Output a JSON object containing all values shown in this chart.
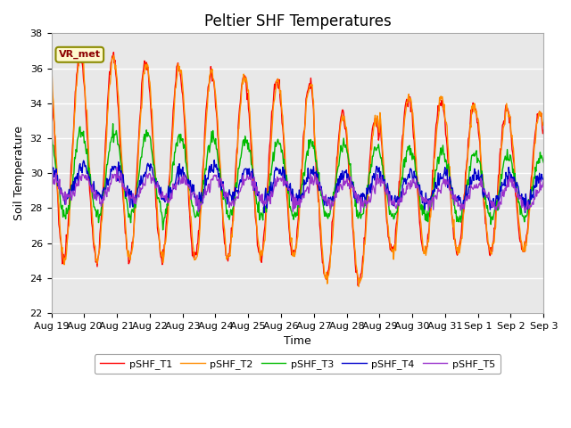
{
  "title": "Peltier SHF Temperatures",
  "xlabel": "Time",
  "ylabel": "Soil Temperature",
  "ylim": [
    22,
    38
  ],
  "xtick_labels": [
    "Aug 19",
    "Aug 20",
    "Aug 21",
    "Aug 22",
    "Aug 23",
    "Aug 24",
    "Aug 25",
    "Aug 26",
    "Aug 27",
    "Aug 28",
    "Aug 29",
    "Aug 30",
    "Aug 31",
    "Sep 1",
    "Sep 2",
    "Sep 3"
  ],
  "ytick_values": [
    22,
    24,
    26,
    28,
    30,
    32,
    34,
    36,
    38
  ],
  "annotation_text": "VR_met",
  "annotation_color": "#8B0000",
  "annotation_bg": "#FFFACD",
  "annotation_edge": "#8B8B00",
  "legend_entries": [
    "pSHF_T1",
    "pSHF_T2",
    "pSHF_T3",
    "pSHF_T4",
    "pSHF_T5"
  ],
  "line_colors": [
    "#FF0000",
    "#FF8C00",
    "#00BB00",
    "#0000CC",
    "#9932CC"
  ],
  "bg_color": "#E8E8E8",
  "title_fontsize": 12,
  "label_fontsize": 9,
  "tick_fontsize": 8
}
